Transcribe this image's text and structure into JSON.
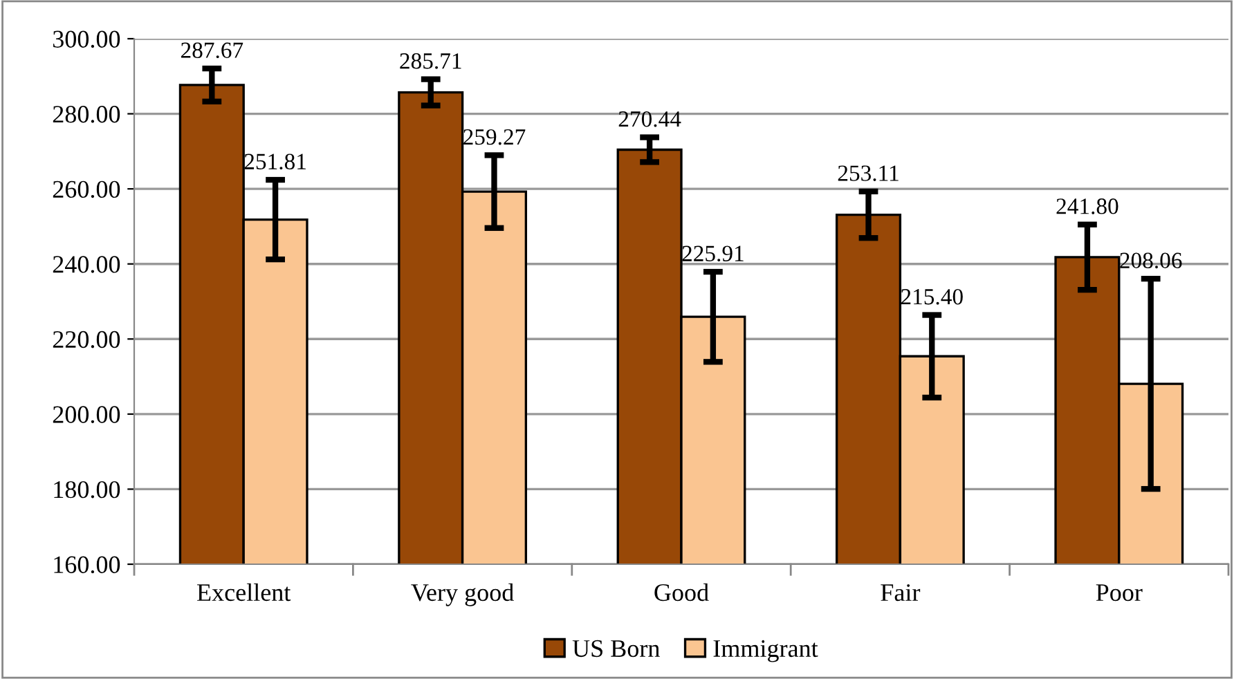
{
  "chart_data": {
    "type": "bar",
    "categories": [
      "Excellent",
      "Very good",
      "Good",
      "Fair",
      "Poor"
    ],
    "series": [
      {
        "name": "US Born",
        "color": "#984807",
        "values": [
          287.67,
          285.71,
          270.44,
          253.11,
          241.8
        ],
        "errors": [
          4.4,
          3.5,
          3.3,
          6.2,
          8.7
        ]
      },
      {
        "name": "Immigrant",
        "color": "#fac591",
        "values": [
          251.81,
          259.27,
          225.91,
          215.4,
          208.06
        ],
        "errors": [
          10.6,
          9.7,
          12,
          11,
          28
        ]
      }
    ],
    "value_labels": [
      [
        "287.67",
        "285.71",
        "270.44",
        "253.11",
        "241.80"
      ],
      [
        "251.81",
        "259.27",
        "225.91",
        "215.40",
        "208.06"
      ]
    ],
    "ylim": [
      160,
      300
    ],
    "yticks": [
      {
        "value": 160,
        "label": "160.00"
      },
      {
        "value": 180,
        "label": "180.00"
      },
      {
        "value": 200,
        "label": "200.00"
      },
      {
        "value": 220,
        "label": "220.00"
      },
      {
        "value": 240,
        "label": "240.00"
      },
      {
        "value": 260,
        "label": "260.00"
      },
      {
        "value": 280,
        "label": "280.00"
      },
      {
        "value": 300,
        "label": "300.00"
      }
    ],
    "grid": "y",
    "legend": "bottom"
  }
}
